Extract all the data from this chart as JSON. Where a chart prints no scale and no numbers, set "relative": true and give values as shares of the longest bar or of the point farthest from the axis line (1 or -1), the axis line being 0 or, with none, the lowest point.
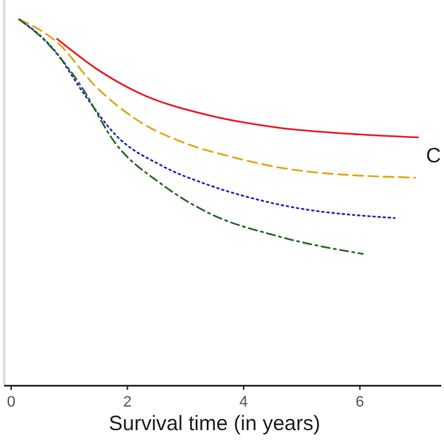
{
  "chart_data": {
    "type": "line",
    "relative": true,
    "xlabel": "Survival time (in years)",
    "xlim": [
      -0.12,
      7.4
    ],
    "xticks": [
      0,
      2,
      4,
      6
    ],
    "annotations": [
      "C"
    ],
    "series": [
      {
        "color": "#e8202a",
        "line_style": "solid",
        "x": [
          0.79,
          1.48,
          2.19,
          3.38,
          4.57,
          6.0,
          7.0
        ],
        "values": [
          0.947,
          0.864,
          0.8,
          0.739,
          0.705,
          0.686,
          0.678
        ]
      },
      {
        "color": "#e6a517",
        "line_style": "dashed",
        "x": [
          0.14,
          0.83,
          1.4,
          2.19,
          2.98,
          3.79,
          4.98,
          6.95
        ],
        "values": [
          1,
          0.932,
          0.826,
          0.723,
          0.663,
          0.625,
          0.587,
          0.568
        ]
      },
      {
        "color": "#2b2bb8",
        "line_style": "dotted",
        "x": [
          0.14,
          0.76,
          1.24,
          1.79,
          2.6,
          3.38,
          4.57,
          6.6
        ],
        "values": [
          1,
          0.913,
          0.8,
          0.686,
          0.6,
          0.549,
          0.496,
          0.458
        ]
      },
      {
        "color": "#2d6a2d",
        "line_style": "dashdot",
        "x": [
          0.14,
          0.6,
          1.17,
          1.79,
          2.6,
          3.38,
          4.57,
          6.05
        ],
        "values": [
          1,
          0.939,
          0.826,
          0.663,
          0.549,
          0.473,
          0.409,
          0.36
        ]
      }
    ]
  }
}
